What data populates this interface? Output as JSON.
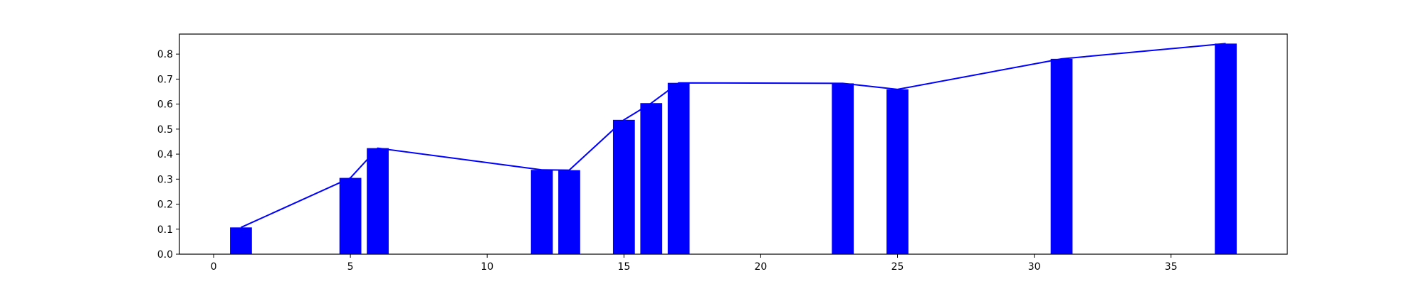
{
  "chart_data": {
    "type": "bar",
    "series_color": "#0000ff",
    "xlim": [
      -1.25,
      39.25
    ],
    "ylim": [
      0,
      0.88
    ],
    "grid": false,
    "legend": "none",
    "x": [
      1,
      5,
      6,
      12,
      13,
      15,
      16,
      17,
      23,
      25,
      31,
      37
    ],
    "values": [
      0.107,
      0.305,
      0.424,
      0.337,
      0.336,
      0.537,
      0.604,
      0.685,
      0.683,
      0.659,
      0.781,
      0.842
    ],
    "bar_width": 0.8,
    "line": {
      "type": "line",
      "connects": "bar tops"
    },
    "xticks": [
      0,
      5,
      10,
      15,
      20,
      25,
      30,
      35
    ],
    "xtick_labels": [
      "0",
      "5",
      "10",
      "15",
      "20",
      "25",
      "30",
      "35"
    ],
    "yticks": [
      0.0,
      0.1,
      0.2,
      0.3,
      0.4,
      0.5,
      0.6,
      0.7,
      0.8
    ],
    "ytick_labels": [
      "0.0",
      "0.1",
      "0.2",
      "0.3",
      "0.4",
      "0.5",
      "0.6",
      "0.7",
      "0.8"
    ]
  }
}
